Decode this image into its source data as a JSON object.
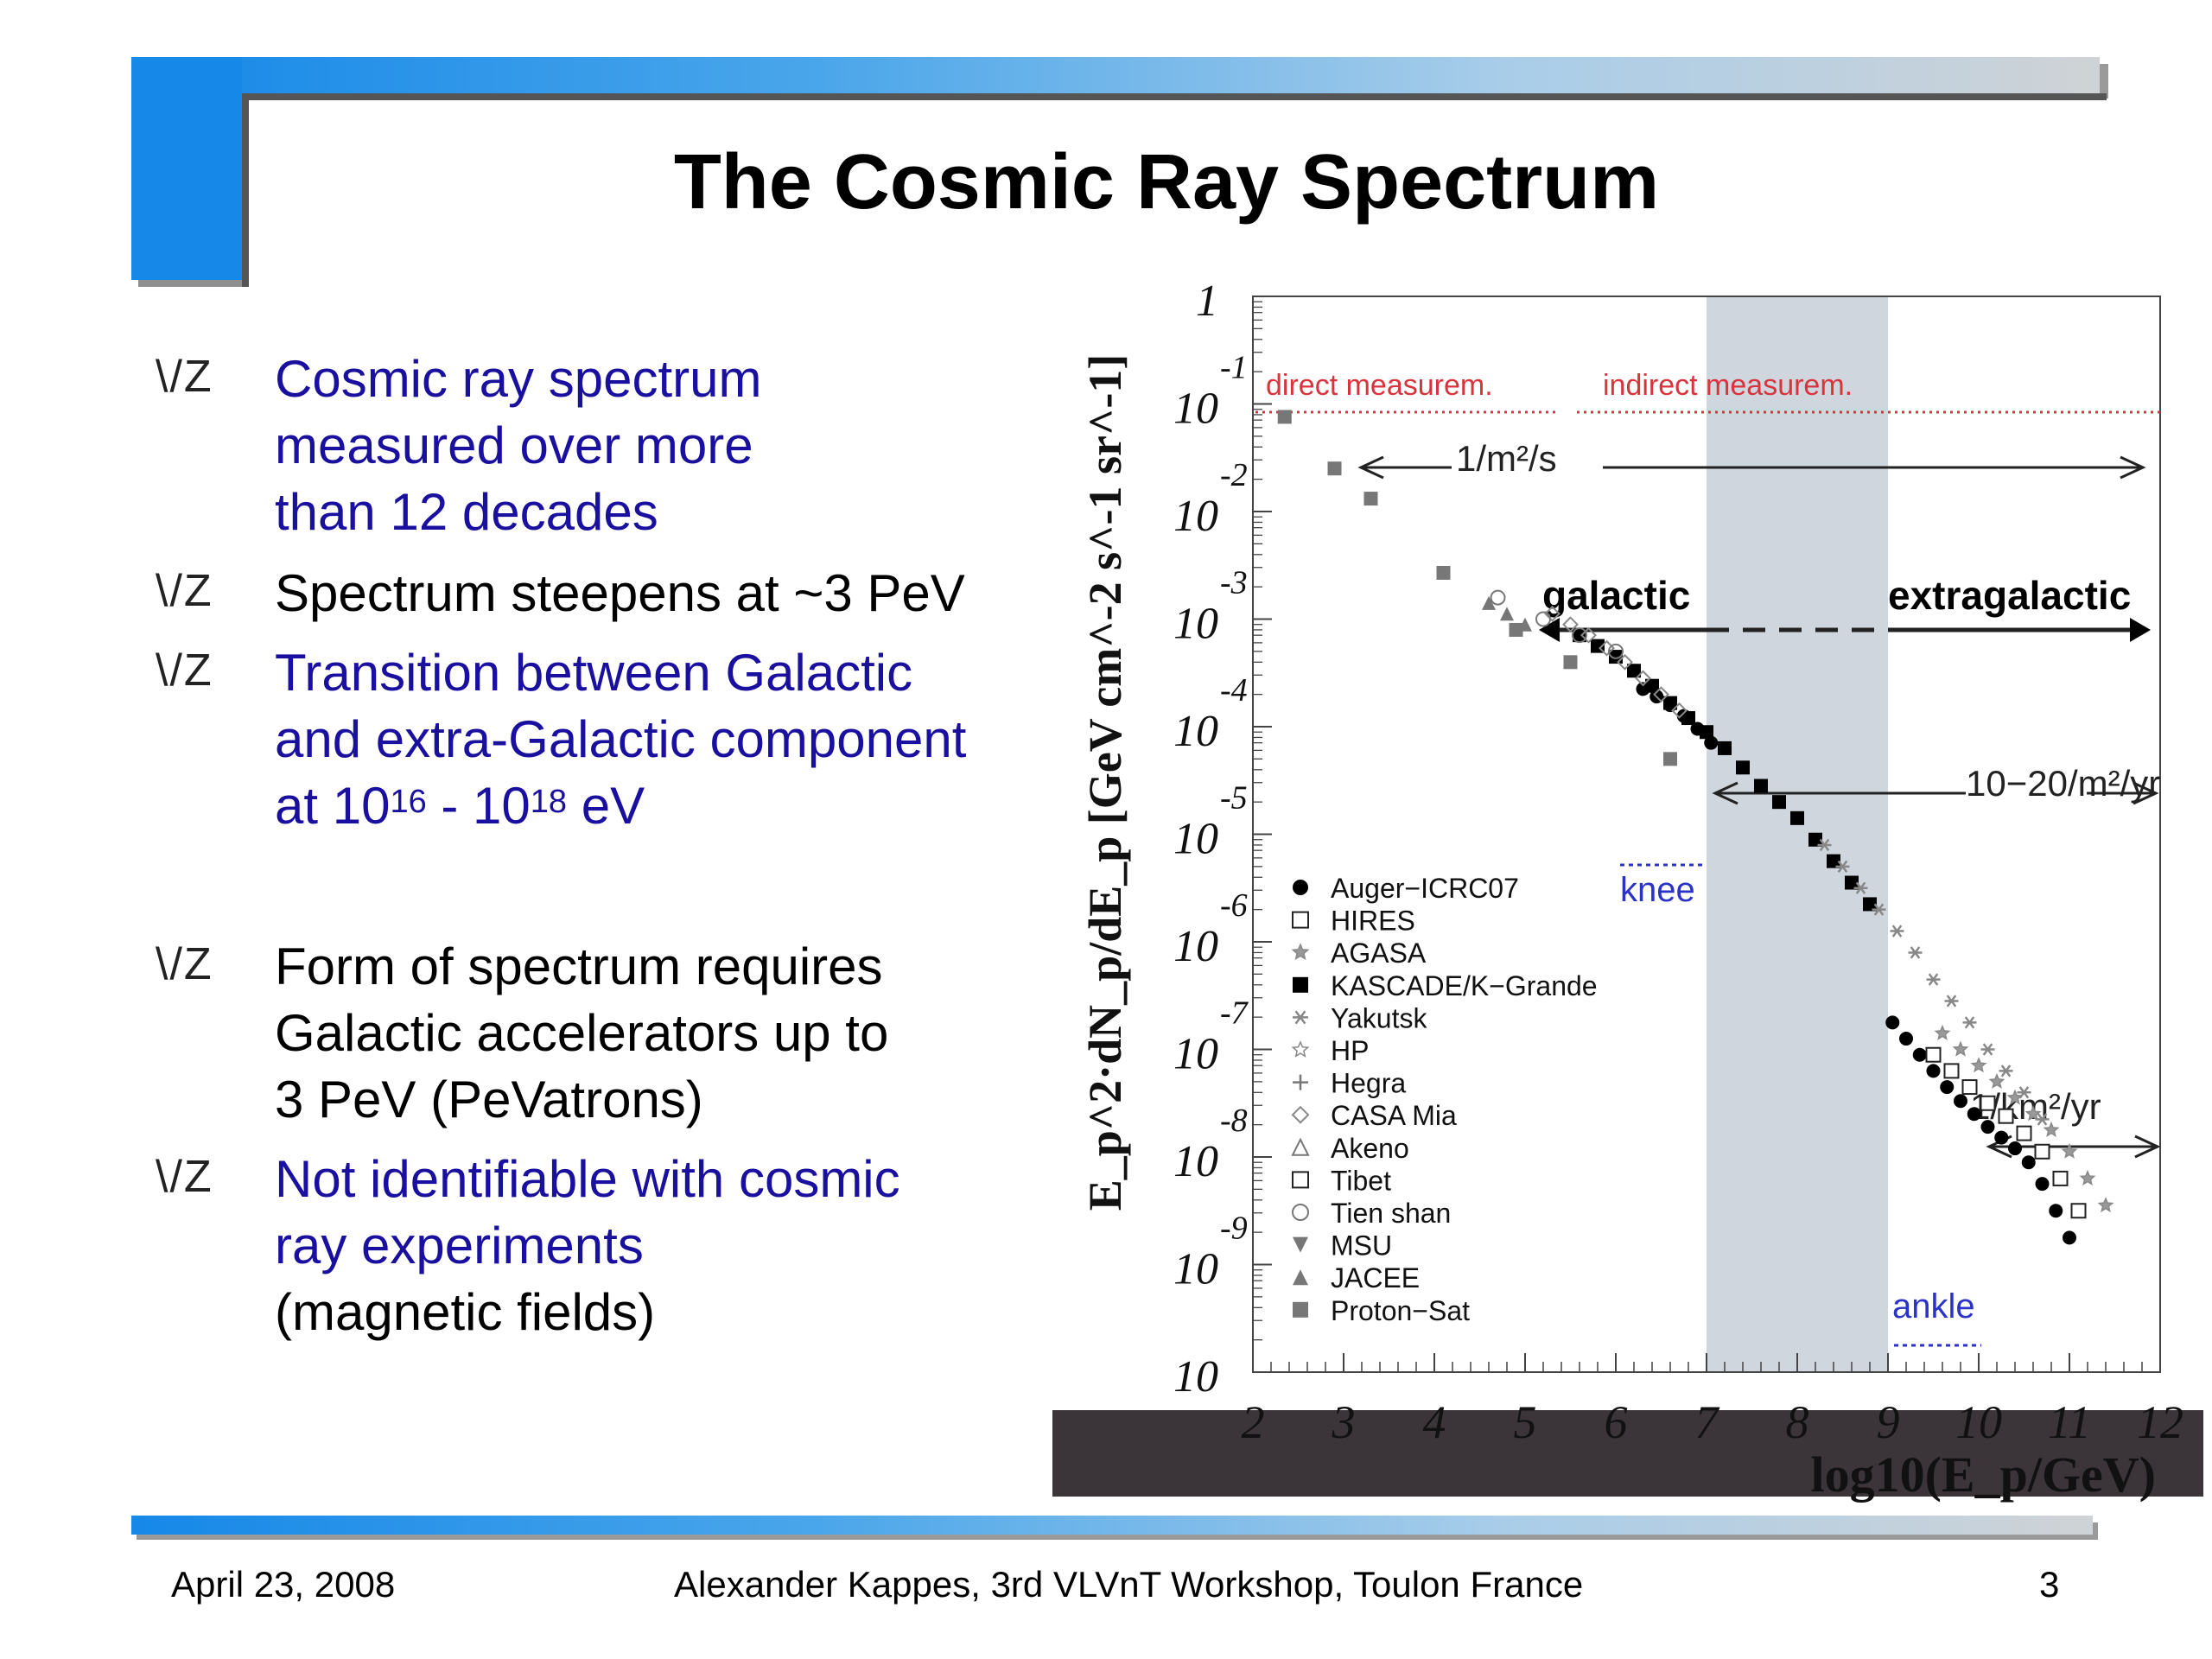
{
  "slide": {
    "title": "The Cosmic Ray Spectrum",
    "bullet_marker": "\\/Z",
    "bullets": [
      {
        "lines": [
          "Cosmic ray spectrum",
          "measured over more",
          "than 12 decades"
        ]
      },
      {
        "lines": [
          "Spectrum steepens at ~3 PeV"
        ]
      },
      {
        "line1": "Transition between Galactic",
        "line2": "and extra-Galactic component",
        "line3_a": "at 10",
        "line3_sup1": "16",
        "line3_b": " - 10",
        "line3_sup2": "18",
        "line3_c": " eV"
      },
      {
        "lines": [
          "Form of spectrum requires",
          "Galactic accelerators up to",
          "3 PeV (PeVatrons)"
        ]
      },
      {
        "lines": [
          "Not identifiable with cosmic",
          "ray experiments",
          "(magnetic fields)"
        ]
      }
    ]
  },
  "footer": {
    "date": "April 23, 2008",
    "author": "Alexander Kappes, 3rd VLVnT Workshop, Toulon France",
    "page": "3"
  },
  "chart_data": {
    "type": "scatter",
    "xlabel": "log10(E_p/GeV)",
    "ylabel": "E_p^2·dN_p/dE_p [GeV cm^-2 s^-1 sr^-1]",
    "xlim": [
      2,
      12
    ],
    "ylim_log10": [
      -10,
      0
    ],
    "y_scale": "log",
    "x_ticks": [
      "2",
      "3",
      "4",
      "5",
      "6",
      "7",
      "8",
      "9",
      "10",
      "11",
      "12"
    ],
    "y_ticks": [
      {
        "base": "1",
        "exp": ""
      },
      {
        "base": "10",
        "exp": "-1"
      },
      {
        "base": "10",
        "exp": "-2"
      },
      {
        "base": "10",
        "exp": "-3"
      },
      {
        "base": "10",
        "exp": "-4"
      },
      {
        "base": "10",
        "exp": "-5"
      },
      {
        "base": "10",
        "exp": "-6"
      },
      {
        "base": "10",
        "exp": "-7"
      },
      {
        "base": "10",
        "exp": "-8"
      },
      {
        "base": "10",
        "exp": "-9"
      },
      {
        "base": "10",
        "exp": ""
      }
    ],
    "shaded_region_x": [
      7,
      9
    ],
    "annotations": {
      "direct": "direct measurem.",
      "indirect": "indirect measurem.",
      "flux1": "1/m²/s",
      "galactic": "galactic",
      "extragalactic": "extragalactic",
      "flux2": "10−20/m²/yr",
      "knee": "knee",
      "flux3": "1/km²/yr",
      "ankle": "ankle"
    },
    "legend": [
      {
        "name": "Auger−ICRC07",
        "marker": "filled-circle"
      },
      {
        "name": "HIRES",
        "marker": "open-square"
      },
      {
        "name": "AGASA",
        "marker": "star"
      },
      {
        "name": "KASCADE/K−Grande",
        "marker": "filled-square"
      },
      {
        "name": "Yakutsk",
        "marker": "asterisk"
      },
      {
        "name": "HP",
        "marker": "open-star"
      },
      {
        "name": "Hegra",
        "marker": "open-cross"
      },
      {
        "name": "CASA Mia",
        "marker": "open-diamond"
      },
      {
        "name": "Akeno",
        "marker": "open-triangle"
      },
      {
        "name": "Tibet",
        "marker": "open-square"
      },
      {
        "name": "Tien shan",
        "marker": "open-circle"
      },
      {
        "name": "MSU",
        "marker": "filled-triangle-down"
      },
      {
        "name": "JACEE",
        "marker": "filled-triangle"
      },
      {
        "name": "Proton−Sat",
        "marker": "filled-square-gray"
      }
    ],
    "series": [
      {
        "name": "Proton−Sat",
        "marker": "filled-square-gray",
        "x": [
          2.35,
          2.9,
          3.3,
          4.1,
          4.9,
          5.5,
          6.6
        ],
        "y": [
          -1.12,
          -1.6,
          -1.88,
          -2.57,
          -3.1,
          -3.4,
          -4.3
        ]
      },
      {
        "name": "JACEE",
        "marker": "filled-triangle",
        "x": [
          4.6,
          4.8,
          5.0
        ],
        "y": [
          -2.85,
          -2.95,
          -3.05
        ]
      },
      {
        "name": "KASCADE/K−Grande",
        "marker": "filled-square",
        "x": [
          5.6,
          5.8,
          6.0,
          6.2,
          6.4,
          6.6,
          6.8,
          7.0,
          7.2,
          7.4,
          7.6,
          7.8,
          8.0,
          8.2,
          8.4,
          8.6,
          8.8
        ],
        "y": [
          -3.15,
          -3.25,
          -3.35,
          -3.48,
          -3.62,
          -3.78,
          -3.92,
          -4.05,
          -4.2,
          -4.38,
          -4.55,
          -4.7,
          -4.85,
          -5.05,
          -5.25,
          -5.45,
          -5.65
        ]
      },
      {
        "name": "Auger−ICRC07",
        "marker": "filled-circle",
        "x": [
          6.3,
          6.45,
          6.6,
          6.75,
          6.9,
          7.05,
          9.05,
          9.2,
          9.35,
          9.5,
          9.65,
          9.8,
          9.95,
          10.1,
          10.25,
          10.4,
          10.55,
          10.7,
          10.85,
          11.0
        ],
        "y": [
          -3.65,
          -3.72,
          -3.8,
          -3.9,
          -4.02,
          -4.15,
          -6.75,
          -6.9,
          -7.05,
          -7.2,
          -7.35,
          -7.48,
          -7.6,
          -7.72,
          -7.82,
          -7.92,
          -8.05,
          -8.25,
          -8.5,
          -8.75
        ]
      },
      {
        "name": "HIRES",
        "marker": "open-square",
        "x": [
          9.5,
          9.7,
          9.9,
          10.1,
          10.3,
          10.5,
          10.7,
          10.9,
          11.1
        ],
        "y": [
          -7.05,
          -7.2,
          -7.35,
          -7.5,
          -7.62,
          -7.78,
          -7.95,
          -8.2,
          -8.5
        ]
      },
      {
        "name": "Yakutsk",
        "marker": "asterisk",
        "x": [
          8.3,
          8.5,
          8.7,
          8.9,
          9.1,
          9.3,
          9.5,
          9.7,
          9.9,
          10.1,
          10.3,
          10.5,
          10.7
        ],
        "y": [
          -5.1,
          -5.3,
          -5.5,
          -5.7,
          -5.9,
          -6.1,
          -6.35,
          -6.55,
          -6.75,
          -7.0,
          -7.2,
          -7.4,
          -7.65
        ]
      },
      {
        "name": "AGASA",
        "marker": "star",
        "x": [
          9.6,
          9.8,
          10.0,
          10.2,
          10.4,
          10.6,
          10.8,
          11.0,
          11.2,
          11.4
        ],
        "y": [
          -6.85,
          -7.0,
          -7.15,
          -7.3,
          -7.45,
          -7.6,
          -7.75,
          -7.95,
          -8.2,
          -8.45
        ]
      },
      {
        "name": "CASA Mia",
        "marker": "open-diamond",
        "x": [
          5.3,
          5.5,
          5.7,
          5.9,
          6.1,
          6.3,
          6.5,
          6.7
        ],
        "y": [
          -2.95,
          -3.05,
          -3.15,
          -3.27,
          -3.4,
          -3.55,
          -3.7,
          -3.85
        ]
      },
      {
        "name": "Tien shan",
        "marker": "open-circle",
        "x": [
          4.7,
          5.2,
          5.6,
          6.0
        ],
        "y": [
          -2.8,
          -3.0,
          -3.15,
          -3.3
        ]
      }
    ]
  }
}
